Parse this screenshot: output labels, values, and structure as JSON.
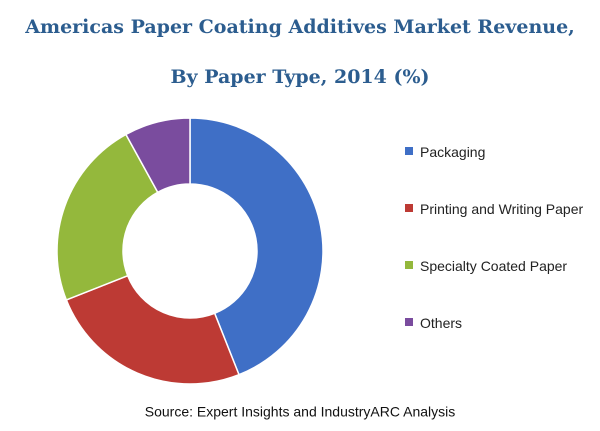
{
  "chart_data": {
    "type": "donut",
    "title": "Americas Paper Coating Additives Market Revenue,",
    "subtitle": "By Paper Type, 2014 (%)",
    "categories": [
      "Packaging",
      "Printing and Writing Paper",
      "Specialty Coated Paper",
      "Others"
    ],
    "values": [
      44,
      25,
      23,
      8
    ],
    "colors": [
      "#3f6fc6",
      "#bd3a34",
      "#94b83c",
      "#7a4c9e"
    ],
    "legend": "right",
    "source": "Source: Expert Insights and IndustryARC Analysis"
  }
}
